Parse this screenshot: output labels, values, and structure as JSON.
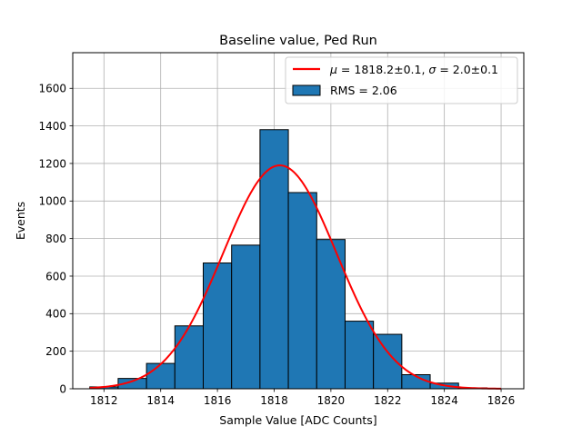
{
  "chart_data": {
    "type": "bar",
    "title": "Baseline value, Ped Run",
    "xlabel": "Sample Value [ADC Counts]",
    "ylabel": "Events",
    "xlim": [
      1810.9,
      1826.8
    ],
    "ylim": [
      0,
      1790
    ],
    "grid": true,
    "legend_position": "top-right",
    "x_ticks": [
      1812,
      1814,
      1816,
      1818,
      1820,
      1822,
      1824,
      1826
    ],
    "y_ticks": [
      0,
      200,
      400,
      600,
      800,
      1000,
      1200,
      1400,
      1600
    ],
    "histogram": {
      "name": "RMS = 2.06",
      "color": "#1f77b4",
      "edgecolor": "#000000",
      "bin_edges": [
        1811.5,
        1812.5,
        1813.5,
        1814.5,
        1815.5,
        1816.5,
        1817.5,
        1818.5,
        1819.5,
        1820.5,
        1821.5,
        1822.5,
        1823.5,
        1824.5,
        1825.5
      ],
      "counts": [
        10,
        55,
        135,
        335,
        670,
        765,
        1380,
        1045,
        795,
        360,
        290,
        75,
        30,
        5
      ]
    },
    "fit": {
      "type": "gaussian",
      "name": "μ = 1818.2±0.1, σ = 2.0±0.1",
      "name_math": {
        "mu_symbol": "μ",
        "mu_text": " = 1818.2±0.1, ",
        "sigma_symbol": "σ",
        "sigma_text": " = 2.0±0.1"
      },
      "mu": 1818.2,
      "sigma": 2.0,
      "amplitude": 1190,
      "x_range": [
        1811.5,
        1826.0
      ],
      "color": "#ff0000"
    }
  }
}
